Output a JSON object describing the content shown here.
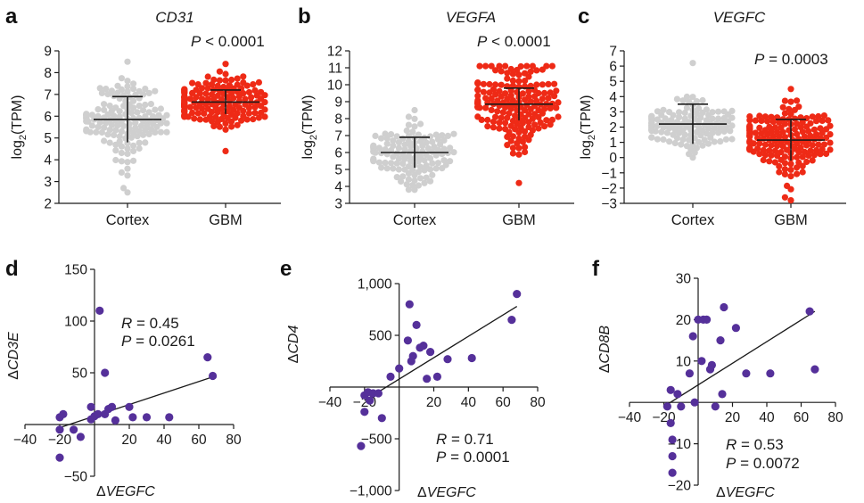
{
  "colors": {
    "cortex": "#cfcfcf",
    "gbm": "#ee2a16",
    "scatter": "#55309a",
    "axis": "#1a1a1a"
  },
  "chart_data": [
    {
      "panel": "a",
      "type": "scatter",
      "subtype": "dot-plot-with-error-bars",
      "title": "CD31",
      "ylabel": "log2(TPM)",
      "ylabel_base": "log",
      "ylabel_sub": "2",
      "ylabel_rest": "(TPM)",
      "yticks": [
        2,
        3,
        4,
        5,
        6,
        7,
        8,
        9
      ],
      "ylim": [
        2,
        9
      ],
      "categories": [
        "Cortex",
        "GBM"
      ],
      "annotation": {
        "prefix": "P",
        "text": " < 0.0001"
      },
      "groups": [
        {
          "name": "Cortex",
          "mean": 5.85,
          "sd_low": 4.8,
          "sd_high": 6.9,
          "min": 2.5,
          "max": 8.5,
          "n": 150,
          "shape": "normal",
          "spread": 0.9
        },
        {
          "name": "GBM",
          "mean": 6.65,
          "sd_low": 6.1,
          "sd_high": 7.2,
          "min": 4.4,
          "max": 8.4,
          "n": 170,
          "shape": "normal",
          "spread": 0.55
        }
      ]
    },
    {
      "panel": "b",
      "type": "scatter",
      "subtype": "dot-plot-with-error-bars",
      "title": "VEGFA",
      "ylabel": "log2(TPM)",
      "ylabel_base": "log",
      "ylabel_sub": "2",
      "ylabel_rest": "(TPM)",
      "yticks": [
        3,
        4,
        5,
        6,
        7,
        8,
        9,
        10,
        11,
        12
      ],
      "ylim": [
        3,
        12
      ],
      "categories": [
        "Cortex",
        "GBM"
      ],
      "annotation": {
        "prefix": "P",
        "text": " < 0.0001"
      },
      "groups": [
        {
          "name": "Cortex",
          "mean": 6.0,
          "sd_low": 5.1,
          "sd_high": 6.9,
          "min": 3.8,
          "max": 8.5,
          "n": 130,
          "shape": "normal",
          "spread": 0.9
        },
        {
          "name": "GBM",
          "mean": 8.85,
          "sd_low": 7.9,
          "sd_high": 9.8,
          "min": 4.2,
          "max": 11.1,
          "n": 180,
          "shape": "normal",
          "spread": 1.3
        }
      ]
    },
    {
      "panel": "c",
      "type": "scatter",
      "subtype": "dot-plot-with-error-bars",
      "title": "VEGFC",
      "ylabel": "log2(TPM)",
      "ylabel_base": "log",
      "ylabel_sub": "2",
      "ylabel_rest": "(TPM)",
      "yticks": [
        -3,
        -2,
        -1,
        0,
        1,
        2,
        3,
        4,
        5,
        6,
        7
      ],
      "ylim": [
        -3,
        7
      ],
      "categories": [
        "Cortex",
        "GBM"
      ],
      "annotation": {
        "prefix": "P",
        "text": " = 0.0003"
      },
      "groups": [
        {
          "name": "Cortex",
          "mean": 2.2,
          "sd_low": 0.9,
          "sd_high": 3.5,
          "min": 0.0,
          "max": 6.2,
          "n": 140,
          "shape": "normal",
          "spread": 0.8
        },
        {
          "name": "GBM",
          "mean": 1.15,
          "sd_low": -0.2,
          "sd_high": 2.5,
          "min": -2.8,
          "max": 4.5,
          "n": 180,
          "shape": "normal",
          "spread": 1.1
        }
      ]
    },
    {
      "panel": "d",
      "type": "scatter",
      "xlabel": "ΔVEGFC",
      "xlabel_delta": "Δ",
      "xlabel_name": "VEGFC",
      "ylabel": "ΔCD3E",
      "ylabel_delta": "Δ",
      "ylabel_name": "CD3E",
      "xticks": [
        -40,
        -20,
        20,
        40,
        60,
        80
      ],
      "yticks": [
        -50,
        50,
        100,
        150
      ],
      "xlim": [
        -40,
        80
      ],
      "ylim": [
        -50,
        150
      ],
      "R": "0.45",
      "P": "0.0261",
      "fit": {
        "x": [
          -20,
          68
        ],
        "y": [
          -3,
          46
        ]
      },
      "points": [
        [
          -20,
          7
        ],
        [
          -18,
          10
        ],
        [
          -20,
          -32
        ],
        [
          -20,
          -5
        ],
        [
          -12,
          -5
        ],
        [
          -8,
          -12
        ],
        [
          -2,
          17
        ],
        [
          -2,
          5
        ],
        [
          0,
          8
        ],
        [
          2,
          10
        ],
        [
          6,
          50
        ],
        [
          6,
          10
        ],
        [
          8,
          15
        ],
        [
          10,
          17
        ],
        [
          12,
          4
        ],
        [
          20,
          17
        ],
        [
          22,
          7
        ],
        [
          30,
          7
        ],
        [
          43,
          7
        ],
        [
          65,
          65
        ],
        [
          68,
          47
        ],
        [
          3,
          110
        ]
      ]
    },
    {
      "panel": "e",
      "type": "scatter",
      "xlabel": "ΔVEGFC",
      "xlabel_delta": "Δ",
      "xlabel_name": "VEGFC",
      "ylabel": "ΔCD4",
      "ylabel_delta": "Δ",
      "ylabel_name": "CD4",
      "xticks": [
        -40,
        -20,
        20,
        40,
        60,
        80
      ],
      "yticks": [
        -1000,
        -500,
        500,
        1000
      ],
      "yticklabels": [
        "−1,000",
        "−500",
        "500",
        "1,000"
      ],
      "xlim": [
        -40,
        80
      ],
      "ylim": [
        -1000,
        1000
      ],
      "R": "0.71",
      "P": "0.0001",
      "fit": {
        "x": [
          -20,
          68
        ],
        "y": [
          -130,
          780
        ]
      },
      "points": [
        [
          -20,
          -80
        ],
        [
          -18,
          -50
        ],
        [
          -17,
          -130
        ],
        [
          -15,
          -60
        ],
        [
          -20,
          -240
        ],
        [
          -10,
          -300
        ],
        [
          -22,
          -570
        ],
        [
          -12,
          -60
        ],
        [
          -5,
          100
        ],
        [
          0,
          180
        ],
        [
          5,
          450
        ],
        [
          6,
          800
        ],
        [
          7,
          250
        ],
        [
          8,
          300
        ],
        [
          10,
          600
        ],
        [
          12,
          380
        ],
        [
          14,
          400
        ],
        [
          16,
          80
        ],
        [
          18,
          340
        ],
        [
          22,
          100
        ],
        [
          28,
          270
        ],
        [
          42,
          280
        ],
        [
          65,
          650
        ],
        [
          68,
          900
        ]
      ]
    },
    {
      "panel": "f",
      "type": "scatter",
      "xlabel": "ΔVEGFC",
      "xlabel_delta": "Δ",
      "xlabel_name": "VEGFC",
      "ylabel": "ΔCD8B",
      "ylabel_delta": "Δ",
      "ylabel_name": "CD8B",
      "xticks": [
        -40,
        -20,
        20,
        40,
        60,
        80
      ],
      "yticks": [
        -20,
        -10,
        10,
        20,
        30
      ],
      "yticklabels": [
        "−20",
        "−10",
        "10",
        "20",
        "30"
      ],
      "xlim": [
        -40,
        80
      ],
      "ylim": [
        -20,
        30
      ],
      "R": "0.53",
      "P": "0.0072",
      "fit": {
        "x": [
          -20,
          68
        ],
        "y": [
          -1,
          22
        ]
      },
      "points": [
        [
          -18,
          -1
        ],
        [
          -16,
          -5
        ],
        [
          -15,
          -9
        ],
        [
          -15,
          -13
        ],
        [
          -15,
          -17
        ],
        [
          -16,
          3
        ],
        [
          -10,
          -1
        ],
        [
          -5,
          7
        ],
        [
          -3,
          16
        ],
        [
          -2,
          0
        ],
        [
          0,
          20
        ],
        [
          2,
          10
        ],
        [
          3,
          20
        ],
        [
          5,
          20
        ],
        [
          7,
          8
        ],
        [
          8,
          9
        ],
        [
          10,
          -1
        ],
        [
          13,
          15
        ],
        [
          14,
          2
        ],
        [
          15,
          23
        ],
        [
          22,
          18
        ],
        [
          28,
          7
        ],
        [
          42,
          7
        ],
        [
          65,
          22
        ],
        [
          68,
          8
        ],
        [
          -12,
          2
        ]
      ]
    }
  ]
}
